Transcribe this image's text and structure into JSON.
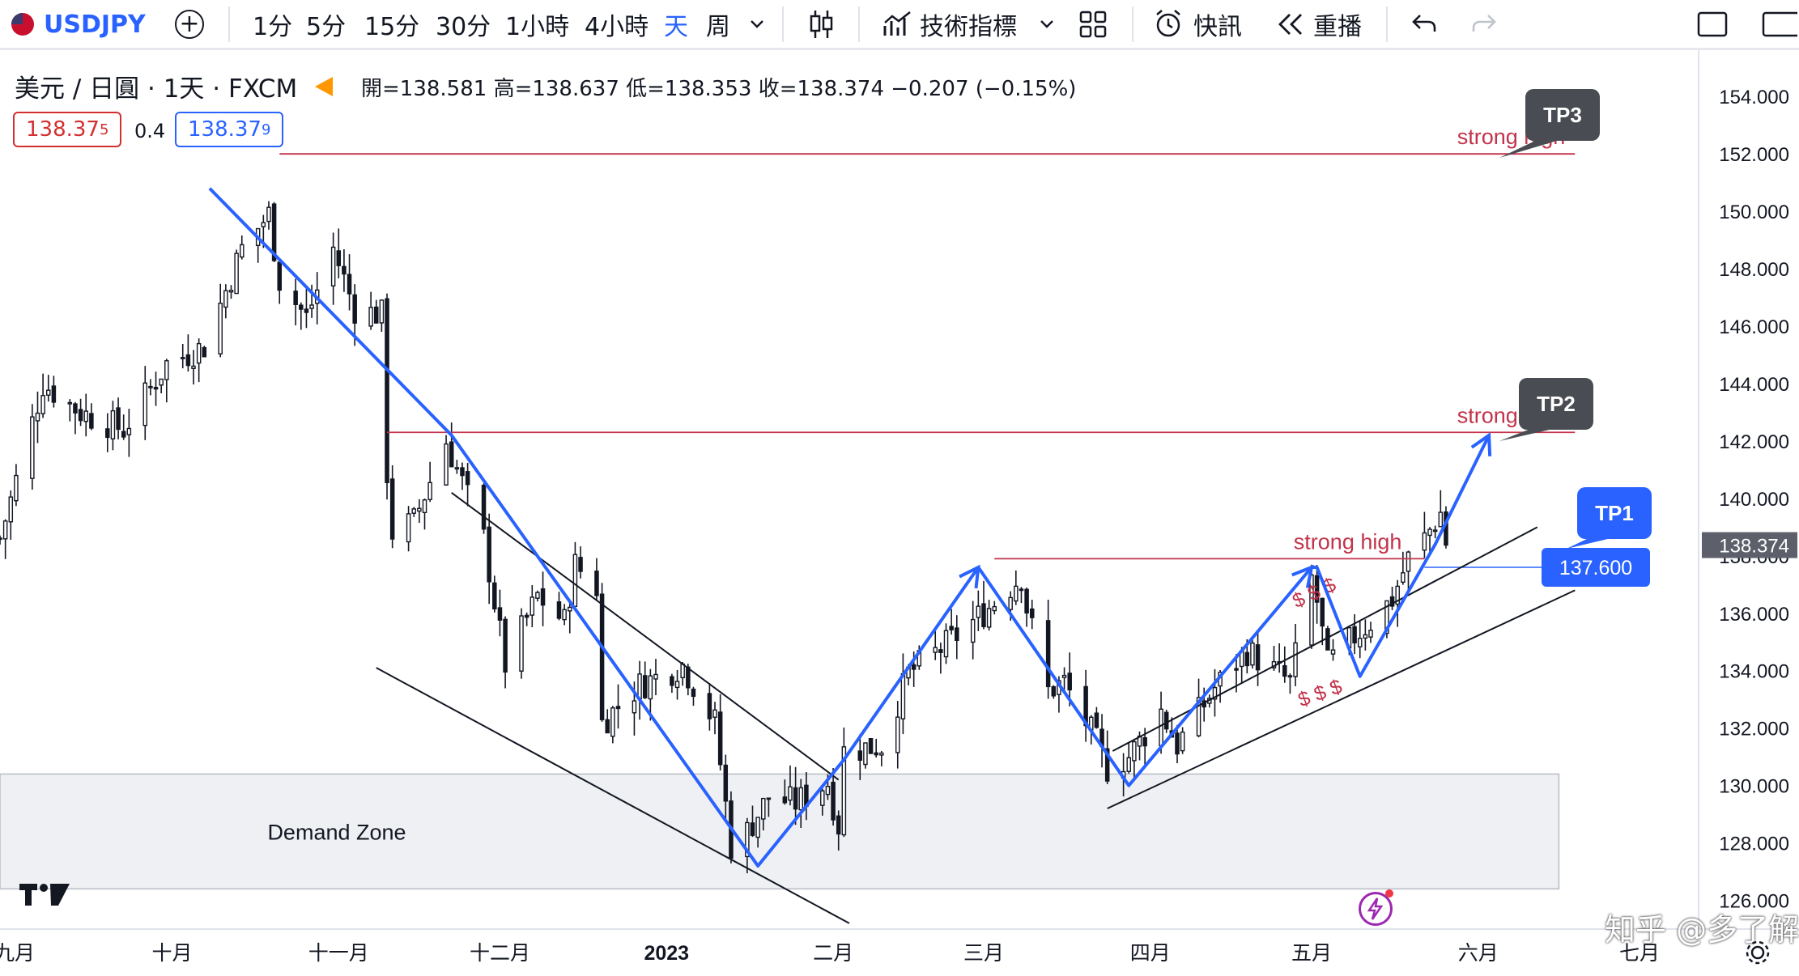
{
  "toolbar": {
    "symbol": "USDJPY",
    "intervals": [
      "1分",
      "5分",
      "15分",
      "30分",
      "1小時",
      "4小時",
      "天",
      "周"
    ],
    "active_interval": "天",
    "indicators_label": "技術指標",
    "alert_label": "快訊",
    "replay_label": "重播"
  },
  "legend": {
    "title": "美元 / 日圓 · 1天 · FXCM",
    "ohlc": "開=138.581 高=138.637 低=138.353 收=138.374 −0.207 (−0.15%)",
    "bid_main": "138.37",
    "bid_sup": "5",
    "spread": "0.4",
    "ask_main": "138.37",
    "ask_sup": "9"
  },
  "chart_data": {
    "type": "candlestick",
    "symbol": "USDJPY",
    "timeframe": "1天",
    "y_range": [
      125.0,
      155.5
    ],
    "y_ticks": [
      126,
      128,
      130,
      132,
      134,
      136,
      138,
      140,
      142,
      144,
      146,
      148,
      150,
      152,
      154
    ],
    "y_tick_labels": [
      "126.000",
      "128.000",
      "130.000",
      "132.000",
      "134.000",
      "136.000",
      "138.000",
      "140.000",
      "142.000",
      "144.000",
      "146.000",
      "148.000",
      "150.000",
      "152.000",
      "154.000"
    ],
    "x_labels": [
      "九月",
      "十月",
      "十一月",
      "十二月",
      "2023",
      "二月",
      "三月",
      "四月",
      "五月",
      "六月",
      "七月"
    ],
    "x_label_dates": [
      "2022-09-01",
      "2022-10-01",
      "2022-11-01",
      "2022-12-01",
      "2023-01-01",
      "2023-02-01",
      "2023-03-01",
      "2023-04-01",
      "2023-05-01",
      "2023-06-01",
      "2023-07-01"
    ],
    "x_axis_start": "2022-08-30",
    "x_axis_end": "2023-07-12",
    "last_price": 138.374,
    "last_price_label": "138.374",
    "close_path": [
      [
        "2022-08-30",
        138.6
      ],
      [
        "2022-09-07",
        144.0
      ],
      [
        "2022-09-14",
        143.0
      ],
      [
        "2022-09-22",
        142.4
      ],
      [
        "2022-09-30",
        144.7
      ],
      [
        "2022-10-07",
        145.3
      ],
      [
        "2022-10-14",
        148.7
      ],
      [
        "2022-10-19",
        149.9
      ],
      [
        "2022-10-21",
        147.6
      ],
      [
        "2022-10-26",
        146.3
      ],
      [
        "2022-10-31",
        148.7
      ],
      [
        "2022-11-04",
        146.6
      ],
      [
        "2022-11-09",
        146.4
      ],
      [
        "2022-11-10",
        140.9
      ],
      [
        "2022-11-11",
        138.8
      ],
      [
        "2022-11-15",
        139.2
      ],
      [
        "2022-11-21",
        142.0
      ],
      [
        "2022-11-28",
        138.6
      ],
      [
        "2022-12-02",
        134.2
      ],
      [
        "2022-12-08",
        136.6
      ],
      [
        "2022-12-13",
        135.7
      ],
      [
        "2022-12-15",
        137.7
      ],
      [
        "2022-12-19",
        136.9
      ],
      [
        "2022-12-20",
        132.2
      ],
      [
        "2022-12-27",
        133.5
      ],
      [
        "2023-01-04",
        134.2
      ],
      [
        "2023-01-10",
        132.2
      ],
      [
        "2023-01-13",
        127.9
      ],
      [
        "2023-01-16",
        128.4
      ],
      [
        "2023-01-20",
        129.6
      ],
      [
        "2023-01-25",
        129.4
      ],
      [
        "2023-01-31",
        130.1
      ],
      [
        "2023-02-02",
        128.6
      ],
      [
        "2023-02-03",
        131.2
      ],
      [
        "2023-02-10",
        131.4
      ],
      [
        "2023-02-15",
        133.9
      ],
      [
        "2023-02-22",
        134.9
      ],
      [
        "2023-03-02",
        136.2
      ],
      [
        "2023-03-08",
        137.3
      ],
      [
        "2023-03-09",
        136.2
      ],
      [
        "2023-03-13",
        133.3
      ],
      [
        "2023-03-16",
        133.6
      ],
      [
        "2023-03-22",
        131.5
      ],
      [
        "2023-03-24",
        130.6
      ],
      [
        "2023-03-28",
        131.0
      ],
      [
        "2023-04-03",
        132.6
      ],
      [
        "2023-04-06",
        131.4
      ],
      [
        "2023-04-13",
        133.4
      ],
      [
        "2023-04-19",
        134.7
      ],
      [
        "2023-04-27",
        133.6
      ],
      [
        "2023-05-01",
        137.2
      ],
      [
        "2023-05-02",
        136.4
      ],
      [
        "2023-05-04",
        134.2
      ],
      [
        "2023-05-09",
        135.2
      ],
      [
        "2023-05-12",
        135.7
      ],
      [
        "2023-05-16",
        136.5
      ],
      [
        "2023-05-19",
        137.9
      ],
      [
        "2023-05-22",
        138.6
      ],
      [
        "2023-05-25",
        139.5
      ],
      [
        "2023-05-26",
        138.4
      ]
    ]
  },
  "annotations": {
    "demand_zone": {
      "label": "Demand Zone",
      "from": "2022-08-30",
      "to": "2023-06-16",
      "low": 126.4,
      "high": 130.4
    },
    "horizontals": [
      {
        "label": "strong high",
        "price": 152.0,
        "from": "2022-10-21",
        "to": "2023-06-19"
      },
      {
        "label": "strong high",
        "price": 142.3,
        "from": "2022-11-10",
        "to": "2023-06-19"
      },
      {
        "label": "strong high",
        "price": 137.9,
        "from": "2023-03-03",
        "to": "2023-05-22"
      }
    ],
    "level_line": {
      "label": "137.600",
      "price": 137.6,
      "from": "2023-05-22",
      "to": "2023-06-16"
    },
    "callouts": [
      "TP3",
      "TP2",
      "TP1"
    ],
    "liquidity_marks": "$ $ $",
    "blue_path": [
      [
        "2022-10-08",
        150.8
      ],
      [
        "2022-11-22",
        142.2
      ],
      [
        "2023-01-18",
        127.2
      ],
      [
        "2023-02-03",
        130.9
      ],
      [
        "2023-02-28",
        137.6
      ],
      [
        "2023-03-28",
        130.0
      ],
      [
        "2023-05-01",
        137.6
      ],
      [
        "2023-05-02",
        137.6
      ],
      [
        "2023-05-10",
        133.8
      ],
      [
        "2023-05-24",
        138.4
      ],
      [
        "2023-06-03",
        142.2
      ]
    ],
    "arrow_heads": [
      {
        "at": [
          "2023-02-28",
          137.6
        ],
        "from": [
          "2023-02-03",
          130.9
        ]
      },
      {
        "at": [
          "2023-05-01",
          137.6
        ],
        "from": [
          "2023-03-28",
          130.0
        ]
      },
      {
        "at": [
          "2023-06-03",
          142.2
        ],
        "from": [
          "2023-05-24",
          138.4
        ]
      }
    ],
    "channel_lines": [
      {
        "from": [
          "2022-11-22",
          140.2
        ],
        "to": [
          "2023-02-02",
          130.2
        ]
      },
      {
        "from": [
          "2022-11-08",
          134.1
        ],
        "to": [
          "2023-02-04",
          125.2
        ]
      },
      {
        "from": [
          "2023-03-25",
          131.2
        ],
        "to": [
          "2023-06-12",
          139.0
        ]
      },
      {
        "from": [
          "2023-03-24",
          129.2
        ],
        "to": [
          "2023-06-19",
          136.8
        ]
      }
    ]
  },
  "watermark": "知乎 @多了解"
}
